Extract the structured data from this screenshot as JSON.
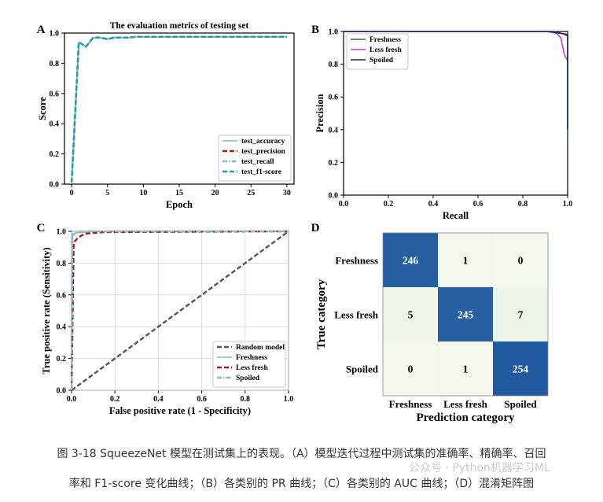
{
  "chart_data": [
    {
      "panel": "A",
      "type": "line",
      "title": "The evaluation metrics of testing set",
      "xlabel": "Epoch",
      "ylabel": "Score",
      "xlim": [
        -1,
        31
      ],
      "ylim": [
        0,
        1.0
      ],
      "xticks": [
        "0",
        "5",
        "10",
        "15",
        "20",
        "25",
        "30"
      ],
      "yticks": [
        "0.0",
        "0.2",
        "0.4",
        "0.6",
        "0.8",
        "1.0"
      ],
      "legend_position": "lower-right",
      "x": [
        0,
        1,
        2,
        3,
        4,
        5,
        6,
        7,
        8,
        9,
        10,
        11,
        12,
        13,
        14,
        15,
        16,
        17,
        18,
        19,
        20,
        21,
        22,
        23,
        24,
        25,
        26,
        27,
        28,
        29,
        30
      ],
      "series": [
        {
          "name": "test_accuracy",
          "color": "#7fbfb4",
          "dash": "solid",
          "values": [
            0.01,
            0.94,
            0.91,
            0.97,
            0.97,
            0.96,
            0.97,
            0.97,
            0.97,
            0.975,
            0.975,
            0.975,
            0.975,
            0.975,
            0.975,
            0.975,
            0.975,
            0.975,
            0.975,
            0.975,
            0.975,
            0.975,
            0.975,
            0.975,
            0.975,
            0.975,
            0.975,
            0.975,
            0.975,
            0.975,
            0.975
          ]
        },
        {
          "name": "test_precision",
          "color": "#9b1c1c",
          "dash": "dashed",
          "values": [
            0.01,
            0.94,
            0.91,
            0.97,
            0.97,
            0.96,
            0.97,
            0.97,
            0.97,
            0.975,
            0.975,
            0.975,
            0.975,
            0.975,
            0.975,
            0.975,
            0.975,
            0.975,
            0.975,
            0.975,
            0.975,
            0.975,
            0.975,
            0.975,
            0.975,
            0.975,
            0.975,
            0.975,
            0.975,
            0.975,
            0.975
          ]
        },
        {
          "name": "test_recall",
          "color": "#8fb8c8",
          "dash": "dashdot",
          "values": [
            0.01,
            0.94,
            0.91,
            0.97,
            0.97,
            0.96,
            0.97,
            0.97,
            0.97,
            0.975,
            0.975,
            0.975,
            0.975,
            0.975,
            0.975,
            0.975,
            0.975,
            0.975,
            0.975,
            0.975,
            0.975,
            0.975,
            0.975,
            0.975,
            0.975,
            0.975,
            0.975,
            0.975,
            0.975,
            0.975,
            0.975
          ]
        },
        {
          "name": "test_f1-score",
          "color": "#1aa0a8",
          "dash": "dashed",
          "values": [
            0.01,
            0.94,
            0.91,
            0.97,
            0.97,
            0.96,
            0.97,
            0.97,
            0.97,
            0.975,
            0.975,
            0.975,
            0.975,
            0.975,
            0.975,
            0.975,
            0.975,
            0.975,
            0.975,
            0.975,
            0.975,
            0.975,
            0.975,
            0.975,
            0.975,
            0.975,
            0.975,
            0.975,
            0.975,
            0.975,
            0.975
          ]
        }
      ]
    },
    {
      "panel": "B",
      "type": "line",
      "title": "",
      "xlabel": "Recall",
      "ylabel": "Precision",
      "xlim": [
        0,
        1.0
      ],
      "ylim": [
        0,
        1.0
      ],
      "xticks": [
        "0.0",
        "0.2",
        "0.4",
        "0.6",
        "0.8",
        "1.0"
      ],
      "yticks": [
        "0.0",
        "0.2",
        "0.4",
        "0.6",
        "0.8",
        "1.0"
      ],
      "legend_position": "top-left",
      "series": [
        {
          "name": "Freshness",
          "color": "#2e6b3a",
          "dash": "solid",
          "points": [
            [
              0,
              1.0
            ],
            [
              0.9,
              1.0
            ],
            [
              0.94,
              1.0
            ],
            [
              0.97,
              0.99
            ],
            [
              0.99,
              0.98
            ],
            [
              1.0,
              0.97
            ],
            [
              1.0,
              0.35
            ]
          ]
        },
        {
          "name": "Less fresh",
          "color": "#c040c8",
          "dash": "solid",
          "points": [
            [
              0,
              1.0
            ],
            [
              0.9,
              1.0
            ],
            [
              0.95,
              0.99
            ],
            [
              0.97,
              0.96
            ],
            [
              0.985,
              0.86
            ],
            [
              1.0,
              0.82
            ]
          ]
        },
        {
          "name": "Spoiled",
          "color": "#1a2a6c",
          "dash": "solid",
          "points": [
            [
              0,
              1.0
            ],
            [
              0.92,
              1.0
            ],
            [
              0.96,
              0.99
            ],
            [
              0.99,
              0.985
            ],
            [
              1.0,
              0.98
            ],
            [
              1.0,
              0.4
            ]
          ]
        }
      ]
    },
    {
      "panel": "C",
      "type": "line",
      "title": "",
      "xlabel": "False positive rate (1 - Specificity)",
      "ylabel": "True positive rate (Sensitivity)",
      "xlim": [
        0,
        1.0
      ],
      "ylim": [
        0,
        1.0
      ],
      "xticks": [
        "0.0",
        "0.2",
        "0.4",
        "0.6",
        "0.8",
        "1.0"
      ],
      "yticks": [
        "0.0",
        "0.2",
        "0.4",
        "0.6",
        "0.8",
        "1.0"
      ],
      "legend_position": "lower-right",
      "series": [
        {
          "name": "Random model",
          "color": "#555555",
          "dash": "dashed",
          "points": [
            [
              0,
              0
            ],
            [
              1,
              1
            ]
          ]
        },
        {
          "name": "Freshness",
          "color": "#7fbfb4",
          "dash": "solid",
          "points": [
            [
              0,
              0
            ],
            [
              0.005,
              0.97
            ],
            [
              0.02,
              0.99
            ],
            [
              0.1,
              1.0
            ],
            [
              1,
              1.0
            ]
          ]
        },
        {
          "name": "Less fresh",
          "color": "#9b1c1c",
          "dash": "dashed",
          "points": [
            [
              0,
              0
            ],
            [
              0.01,
              0.93
            ],
            [
              0.03,
              0.96
            ],
            [
              0.06,
              0.985
            ],
            [
              0.15,
              0.995
            ],
            [
              1,
              1.0
            ]
          ]
        },
        {
          "name": "Spoiled",
          "color": "#8fb8c8",
          "dash": "dashdot",
          "points": [
            [
              0,
              0
            ],
            [
              0.004,
              0.98
            ],
            [
              0.02,
              0.995
            ],
            [
              0.08,
              1.0
            ],
            [
              1,
              1.0
            ]
          ]
        }
      ]
    },
    {
      "panel": "D",
      "type": "heatmap",
      "title": "",
      "xlabel": "Prediction category",
      "ylabel": "True category",
      "categories": [
        "Freshness",
        "Less fresh",
        "Spoiled"
      ],
      "matrix": [
        [
          246,
          1,
          0
        ],
        [
          5,
          245,
          7
        ],
        [
          0,
          1,
          254
        ]
      ],
      "color_low": "#f3f9ec",
      "color_high": "#1f5a9e"
    }
  ],
  "caption": {
    "line1": "图 3-18 SqueezeNet 模型在测试集上的表现。（A）模型迭代过程中测试集的准确率、精确率、召回",
    "line2": "率和 F1-score 变化曲线；（B）各类别的 PR 曲线；（C）各类别的 AUC 曲线；（D）混淆矩阵图"
  },
  "watermark": "公众号 · Python机器学习ML"
}
